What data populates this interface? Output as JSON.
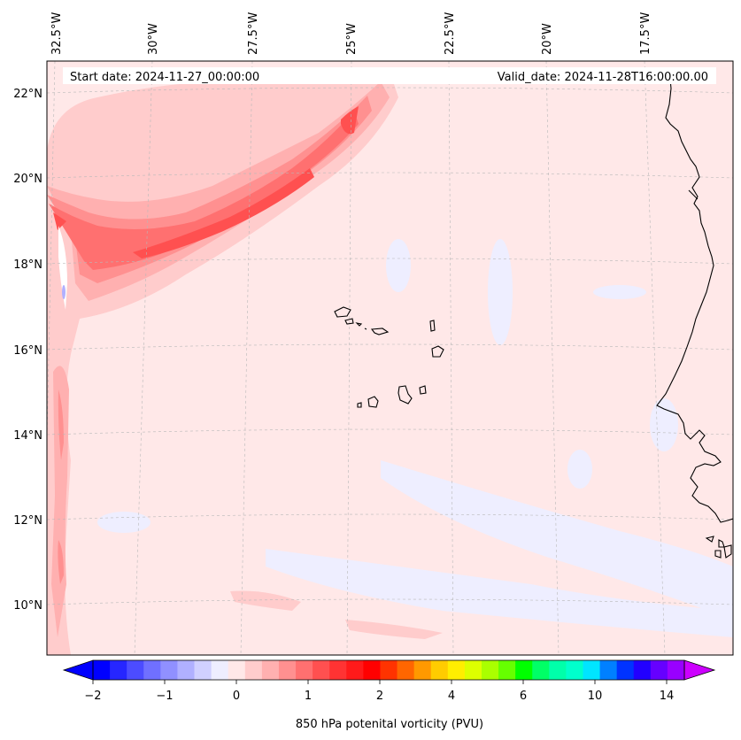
{
  "map": {
    "header_left": "Start date: 2024-11-27_00:00:00",
    "header_right": "Valid_date: 2024-11-28T16:00:00.00",
    "lon_labels": [
      "32.5°W",
      "30°W",
      "27.5°W",
      "25°W",
      "22.5°W",
      "20°W",
      "17.5°W"
    ],
    "lat_labels": [
      "22°N",
      "20°N",
      "18°N",
      "16°N",
      "14°N",
      "12°N",
      "10°N"
    ],
    "background_fill": "#ffe8e8",
    "coastline_color": "#000000"
  },
  "colorbar": {
    "label": "850 hPa potenital vorticity (PVU)",
    "tick_labels": [
      "−2",
      "−1",
      "0",
      "1",
      "2",
      "4",
      "6",
      "10",
      "14"
    ],
    "colors": [
      "#0000ff",
      "#2626ff",
      "#4c4cff",
      "#7070ff",
      "#9090ff",
      "#b0b0ff",
      "#d0d0ff",
      "#eeeeff",
      "#ffe8e8",
      "#ffcccc",
      "#ffb0b0",
      "#ff9090",
      "#ff7070",
      "#ff5050",
      "#ff3333",
      "#ff1a1a",
      "#ff0000",
      "#ff3300",
      "#ff6600",
      "#ff9900",
      "#ffcc00",
      "#ffee00",
      "#ddff00",
      "#aaff00",
      "#66ff00",
      "#00ff00",
      "#00ff66",
      "#00ffaa",
      "#00ffcc",
      "#00e5ff",
      "#0080ff",
      "#0033ff",
      "#2200ff",
      "#6600ff",
      "#9900ff"
    ],
    "extend_min_color": "#0000ff",
    "extend_max_color": "#cc00ff"
  }
}
